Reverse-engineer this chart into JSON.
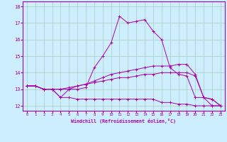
{
  "xlabel": "Windchill (Refroidissement éolien,°C)",
  "bg_color": "#cceeff",
  "grid_color": "#aaccbb",
  "line_color": "#aa00aa",
  "x_ticks": [
    0,
    1,
    2,
    3,
    4,
    5,
    6,
    7,
    8,
    9,
    10,
    11,
    12,
    13,
    14,
    15,
    16,
    17,
    18,
    19,
    20,
    21,
    22,
    23
  ],
  "xlim": [
    -0.5,
    23.5
  ],
  "ylim": [
    11.7,
    18.3
  ],
  "y_ticks": [
    12,
    13,
    14,
    15,
    16,
    17,
    18
  ],
  "series": [
    {
      "x": [
        0,
        1,
        2,
        3,
        4,
        5,
        6,
        7,
        8,
        9,
        10,
        11,
        12,
        13,
        14,
        15,
        16,
        17,
        18,
        19,
        20,
        21,
        22,
        23
      ],
      "y": [
        13.2,
        13.2,
        13.0,
        13.0,
        12.5,
        13.0,
        13.0,
        13.1,
        14.3,
        15.0,
        15.8,
        17.4,
        17.0,
        17.1,
        17.2,
        16.5,
        16.0,
        14.3,
        13.9,
        13.8,
        12.5,
        12.5,
        12.0,
        12.0
      ]
    },
    {
      "x": [
        0,
        1,
        2,
        3,
        4,
        5,
        6,
        7,
        8,
        9,
        10,
        11,
        12,
        13,
        14,
        15,
        16,
        17,
        18,
        19,
        20,
        21,
        22,
        23
      ],
      "y": [
        13.2,
        13.2,
        13.0,
        13.0,
        12.5,
        12.5,
        12.4,
        12.4,
        12.4,
        12.4,
        12.4,
        12.4,
        12.4,
        12.4,
        12.4,
        12.4,
        12.2,
        12.2,
        12.1,
        12.1,
        12.0,
        12.0,
        12.0,
        12.0
      ]
    },
    {
      "x": [
        0,
        1,
        2,
        3,
        4,
        5,
        6,
        7,
        8,
        9,
        10,
        11,
        12,
        13,
        14,
        15,
        16,
        17,
        18,
        19,
        20,
        21,
        22,
        23
      ],
      "y": [
        13.2,
        13.2,
        13.0,
        13.0,
        13.0,
        13.1,
        13.2,
        13.3,
        13.5,
        13.7,
        13.9,
        14.0,
        14.1,
        14.2,
        14.3,
        14.4,
        14.4,
        14.4,
        14.5,
        14.5,
        13.9,
        12.5,
        12.4,
        12.0
      ]
    },
    {
      "x": [
        0,
        1,
        2,
        3,
        4,
        5,
        6,
        7,
        8,
        9,
        10,
        11,
        12,
        13,
        14,
        15,
        16,
        17,
        18,
        19,
        20,
        21,
        22,
        23
      ],
      "y": [
        13.2,
        13.2,
        13.0,
        13.0,
        13.0,
        13.0,
        13.2,
        13.3,
        13.4,
        13.5,
        13.6,
        13.7,
        13.7,
        13.8,
        13.9,
        13.9,
        14.0,
        14.0,
        14.0,
        14.0,
        13.8,
        12.5,
        12.4,
        12.0
      ]
    }
  ]
}
